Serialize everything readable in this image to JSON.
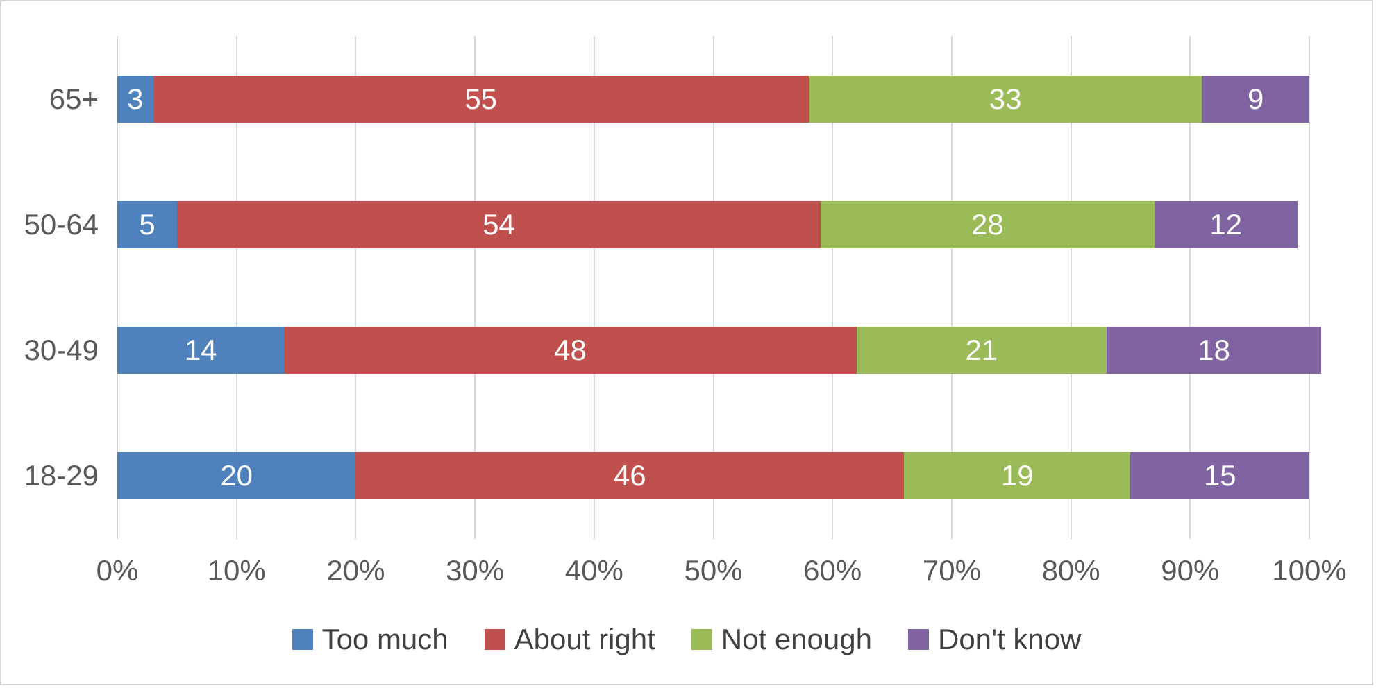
{
  "chart_data": {
    "type": "bar",
    "orientation": "horizontal",
    "stacked": true,
    "categories": [
      "65+",
      "50-64",
      "30-49",
      "18-29"
    ],
    "series": [
      {
        "name": "Too much",
        "color": "#4F81BD",
        "values": [
          3,
          5,
          14,
          20
        ]
      },
      {
        "name": "About right",
        "color": "#C0504D",
        "values": [
          55,
          54,
          48,
          46
        ]
      },
      {
        "name": "Not enough",
        "color": "#9BBB59",
        "values": [
          33,
          28,
          21,
          19
        ]
      },
      {
        "name": "Don't know",
        "color": "#8064A2",
        "values": [
          9,
          12,
          18,
          15
        ]
      }
    ],
    "x_axis": {
      "min": 0,
      "max": 100,
      "tick_step": 10,
      "ticks": [
        "0%",
        "10%",
        "20%",
        "30%",
        "40%",
        "50%",
        "60%",
        "70%",
        "80%",
        "90%",
        "100%"
      ],
      "grid": true
    },
    "data_labels": "inside-center",
    "legend_position": "bottom",
    "colors": {
      "background": "#FFFFFF",
      "border": "#D6D6D6",
      "gridline": "#D9D9D9",
      "axis_text": "#595959",
      "legend_text": "#404040",
      "data_label_text": "#FFFFFF"
    }
  }
}
